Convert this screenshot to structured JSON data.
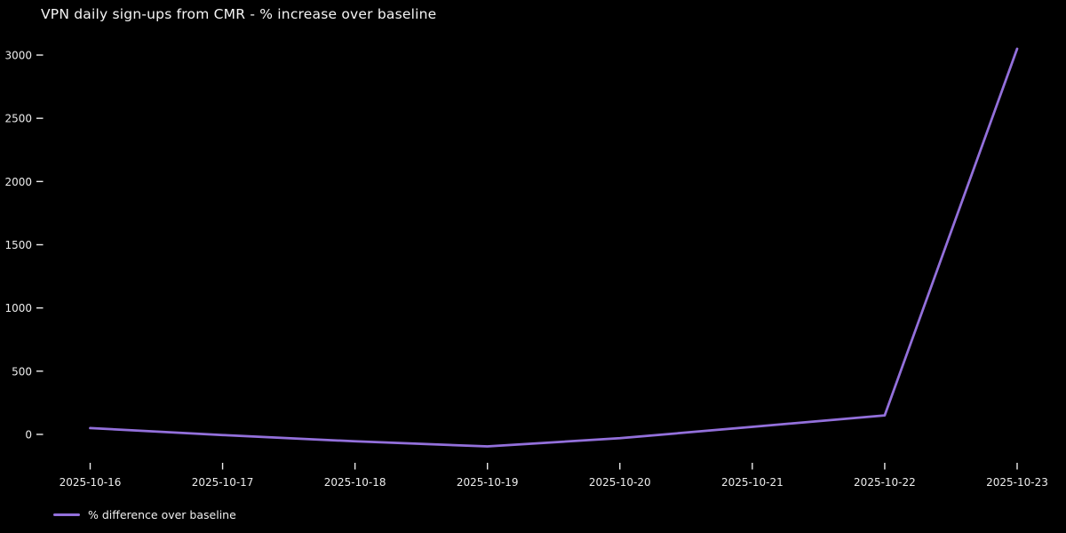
{
  "chart_data": {
    "type": "line",
    "title": "VPN daily sign-ups from CMR - % increase over baseline",
    "categories": [
      "2025-10-16",
      "2025-10-17",
      "2025-10-18",
      "2025-10-19",
      "2025-10-20",
      "2025-10-21",
      "2025-10-22",
      "2025-10-23"
    ],
    "series": [
      {
        "name": "% difference over baseline",
        "values": [
          50,
          -5,
          -55,
          -95,
          -30,
          60,
          150,
          3050
        ],
        "color": "#9370DB"
      }
    ],
    "yticks": [
      0,
      500,
      1000,
      1500,
      2000,
      2500,
      3000
    ],
    "ylim": [
      -210,
      3150
    ],
    "xlabel": "",
    "ylabel": "",
    "grid": false,
    "legend_position": "bottom-left",
    "background_color": "#000000",
    "text_color": "#ededed"
  },
  "legend": {
    "items": [
      {
        "label": "% difference over baseline",
        "color": "#9370DB"
      }
    ]
  }
}
